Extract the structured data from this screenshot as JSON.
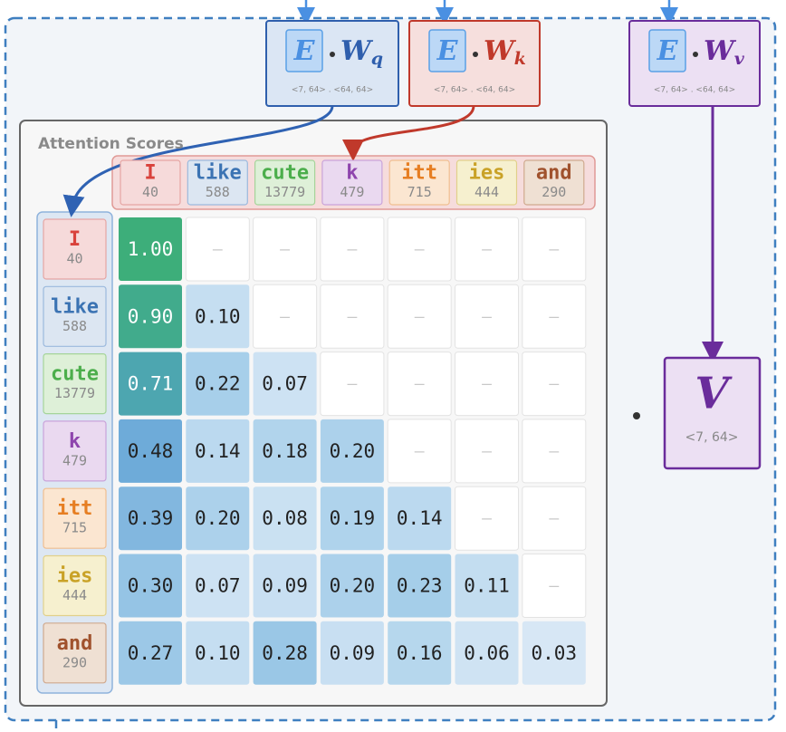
{
  "projections": [
    {
      "matrix": "E",
      "weight": "W",
      "subscript": "q",
      "shape": "<7, 64> . <64, 64>"
    },
    {
      "matrix": "E",
      "weight": "W",
      "subscript": "k",
      "shape": "<7, 64> . <64, 64>"
    },
    {
      "matrix": "E",
      "weight": "W",
      "subscript": "v",
      "shape": "<7, 64> . <64, 64>"
    }
  ],
  "value_matrix": {
    "label": "V",
    "shape": "<7, 64>"
  },
  "scores": {
    "title": "Attention Scores",
    "tokens": [
      {
        "text": "I",
        "id": 40
      },
      {
        "text": "like",
        "id": 588
      },
      {
        "text": "cute",
        "id": 13779
      },
      {
        "text": "k",
        "id": 479
      },
      {
        "text": "itt",
        "id": 715
      },
      {
        "text": "ies",
        "id": 444
      },
      {
        "text": "and",
        "id": 290
      }
    ],
    "rows": [
      [
        "1.00",
        "—",
        "—",
        "—",
        "—",
        "—",
        "—"
      ],
      [
        "0.90",
        "0.10",
        "—",
        "—",
        "—",
        "—",
        "—"
      ],
      [
        "0.71",
        "0.22",
        "0.07",
        "—",
        "—",
        "—",
        "—"
      ],
      [
        "0.48",
        "0.14",
        "0.18",
        "0.20",
        "—",
        "—",
        "—"
      ],
      [
        "0.39",
        "0.20",
        "0.08",
        "0.19",
        "0.14",
        "—",
        "—"
      ],
      [
        "0.30",
        "0.07",
        "0.09",
        "0.20",
        "0.23",
        "0.11",
        "—"
      ],
      [
        "0.27",
        "0.10",
        "0.28",
        "0.09",
        "0.16",
        "0.06",
        "0.03"
      ]
    ]
  }
}
